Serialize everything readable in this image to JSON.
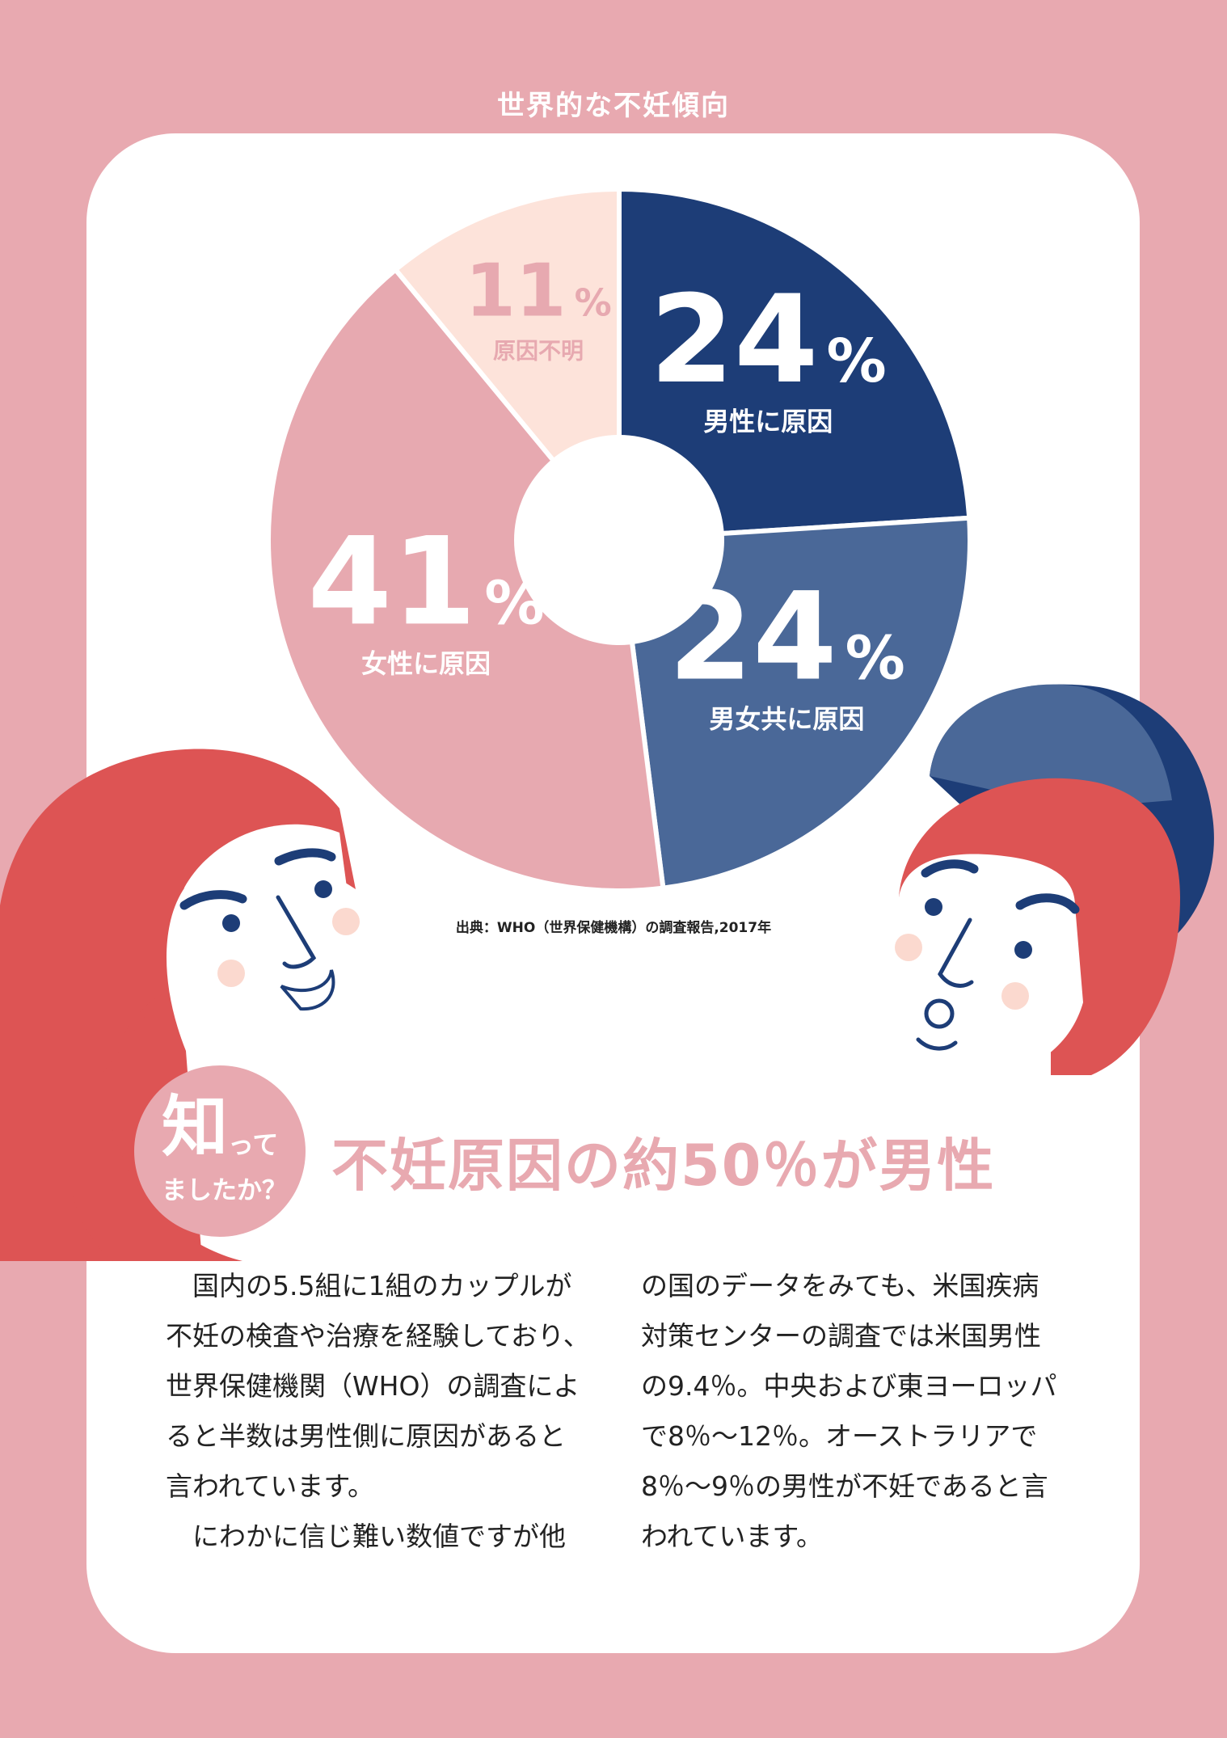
{
  "page": {
    "title": "世界的な不妊傾向"
  },
  "chart_data": {
    "type": "pie",
    "slices": [
      {
        "label": "男性に原因",
        "value": 24,
        "value_text": "24",
        "color": "#1d3d77"
      },
      {
        "label": "男女共に原因",
        "value": 24,
        "value_text": "24",
        "color": "#4a6898"
      },
      {
        "label": "女性に原因",
        "value": 41,
        "value_text": "41",
        "color": "#e7a9b0"
      },
      {
        "label": "原因不明",
        "value": 11,
        "value_text": "11",
        "color": "#fde3da"
      }
    ],
    "unit": "%"
  },
  "source": "出典：WHO（世界保健機構）の調査報告,2017年",
  "badge": {
    "big": "知",
    "small1": "って",
    "small2": "ましたか？"
  },
  "headline": "不妊原因の約50％が男性",
  "body": {
    "left": [
      "国内の5.5組に1組のカップルが不妊の検査や治療を経験しており、世界保健機関（WHO）の調査によると半数は男性側に原因があると言われています。",
      "にわかに信じ難い数値ですが他"
    ],
    "right": [
      "の国のデータをみても、米国疾病対策センターの調査では米国男性の9.4％。中央および東ヨーロッパで8％〜12％。オーストラリアで8％〜9％の男性が不妊であると言われています。"
    ]
  }
}
